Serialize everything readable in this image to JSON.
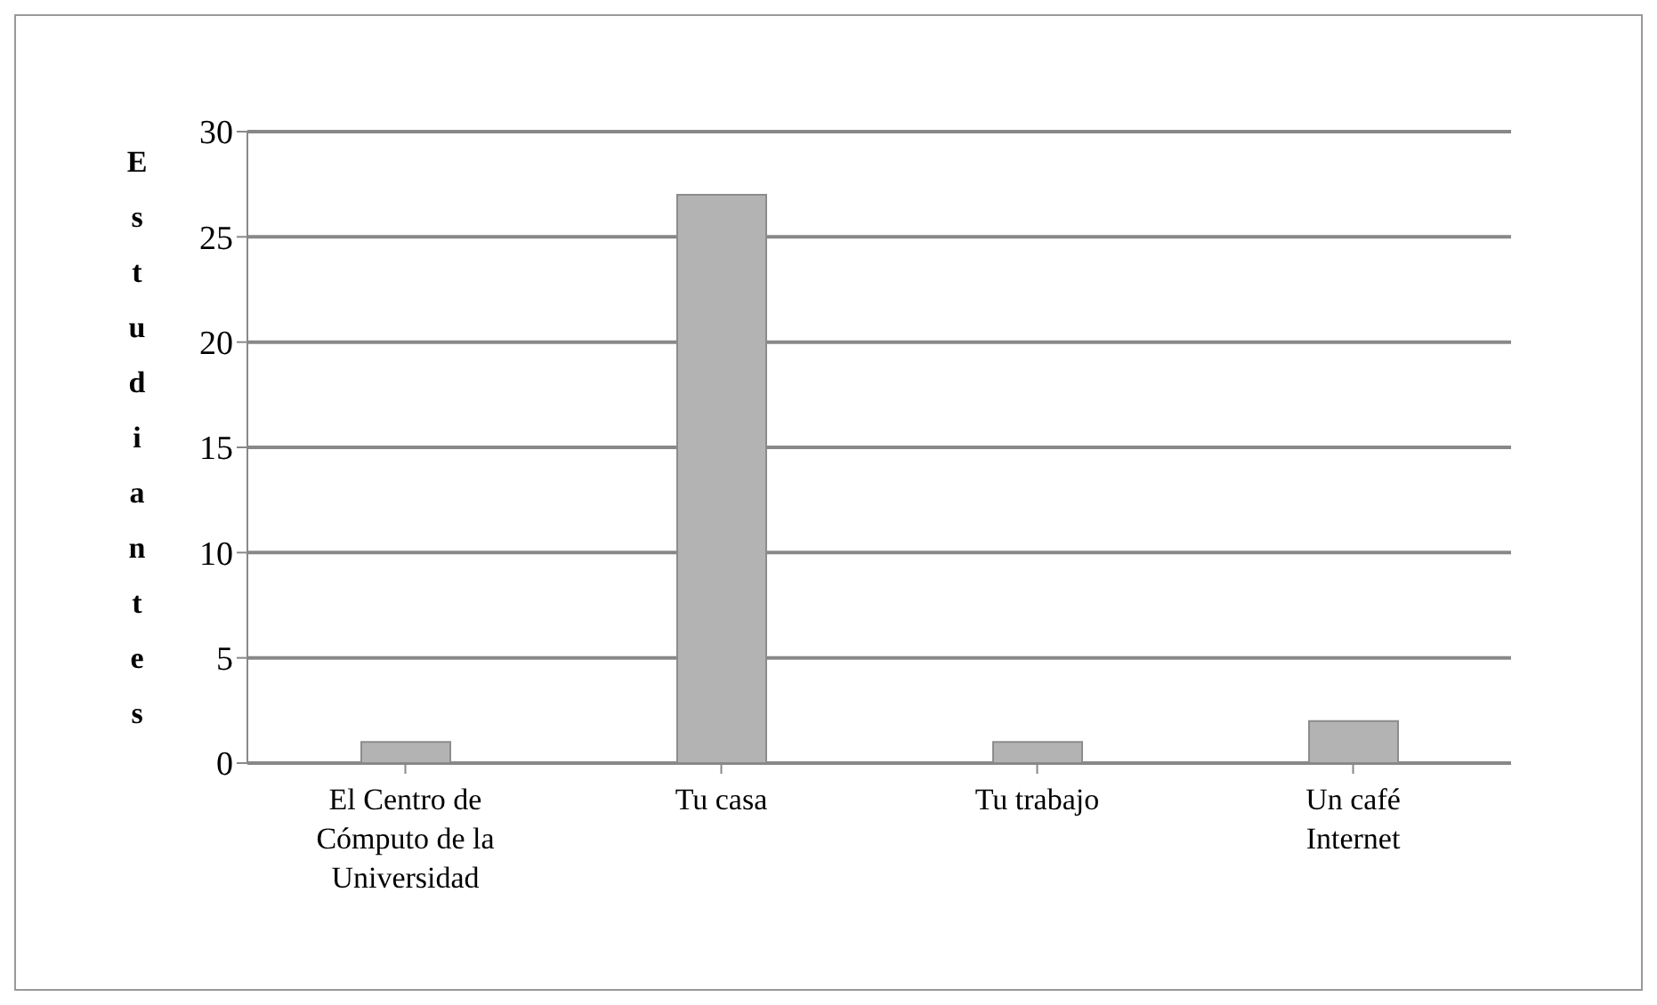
{
  "chart_data": {
    "type": "bar",
    "ylabel": "Estudiantes",
    "categories": [
      "El Centro de Cómputo de la Universidad",
      "Tu casa",
      "Tu trabajo",
      "Un café Internet"
    ],
    "values": [
      1,
      27,
      1,
      2
    ],
    "color": "#b3b3b3",
    "ylim": [
      0,
      30
    ],
    "yticks": [
      0,
      5,
      10,
      15,
      20,
      25,
      30
    ],
    "grid": "y"
  }
}
